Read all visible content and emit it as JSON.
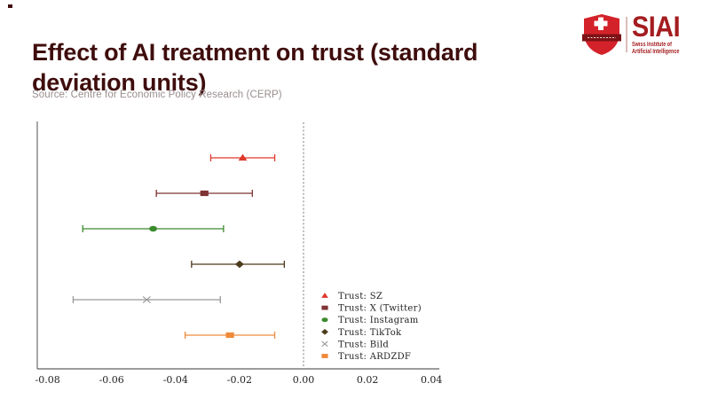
{
  "header": {
    "title": "Effect of AI treatment on trust (standard\ndeviation units)",
    "source": "Source: Centre for Economic Policy Research (CERP)"
  },
  "logo": {
    "name": "SIAI",
    "subtitle": "Swiss Institute of\nArtificial Intelligence",
    "shield_color": "#d4222a",
    "banner_color": "#7d1216",
    "text_color": "#a41d20"
  },
  "colors": {
    "title": "#3f0d0d",
    "source": "#9a8d8d",
    "axis": "#3a3a3a",
    "left_spine": "#a8a8a8",
    "zero_line": "#7a7a7a",
    "tick_text": "#1f1f1f",
    "legend_text": "#1f1f1f"
  },
  "chart_data": {
    "type": "errorbar",
    "orientation": "horizontal",
    "title": "",
    "xlabel": "",
    "ylabel": "",
    "xlim": [
      -0.08,
      0.04
    ],
    "xticks": [
      -0.08,
      -0.06,
      -0.04,
      -0.02,
      0.0,
      0.02,
      0.04
    ],
    "xtick_labels": [
      "-0.08",
      "-0.06",
      "-0.04",
      "-0.02",
      "0.00",
      "0.02",
      "0.04"
    ],
    "zero_reference_line": 0.0,
    "grid": false,
    "legend_position": "lower-right-inside",
    "series": [
      {
        "label": "Trust: SZ",
        "marker": "triangle",
        "color": "#df382b",
        "estimate": -0.019,
        "ci_low": -0.029,
        "ci_high": -0.009
      },
      {
        "label": "Trust: X (Twitter)",
        "marker": "square",
        "color": "#7f3333",
        "estimate": -0.031,
        "ci_low": -0.046,
        "ci_high": -0.016
      },
      {
        "label": "Trust: Instagram",
        "marker": "circle",
        "color": "#3c8a2e",
        "estimate": -0.047,
        "ci_low": -0.069,
        "ci_high": -0.025
      },
      {
        "label": "Trust: TikTok",
        "marker": "diamond",
        "color": "#4c3b1c",
        "estimate": -0.02,
        "ci_low": -0.035,
        "ci_high": -0.006
      },
      {
        "label": "Trust: Bild",
        "marker": "x",
        "color": "#999999",
        "estimate": -0.049,
        "ci_low": -0.072,
        "ci_high": -0.026
      },
      {
        "label": "Trust: ARDZDF",
        "marker": "square",
        "color": "#ef8a3a",
        "estimate": -0.023,
        "ci_low": -0.037,
        "ci_high": -0.009
      }
    ]
  }
}
